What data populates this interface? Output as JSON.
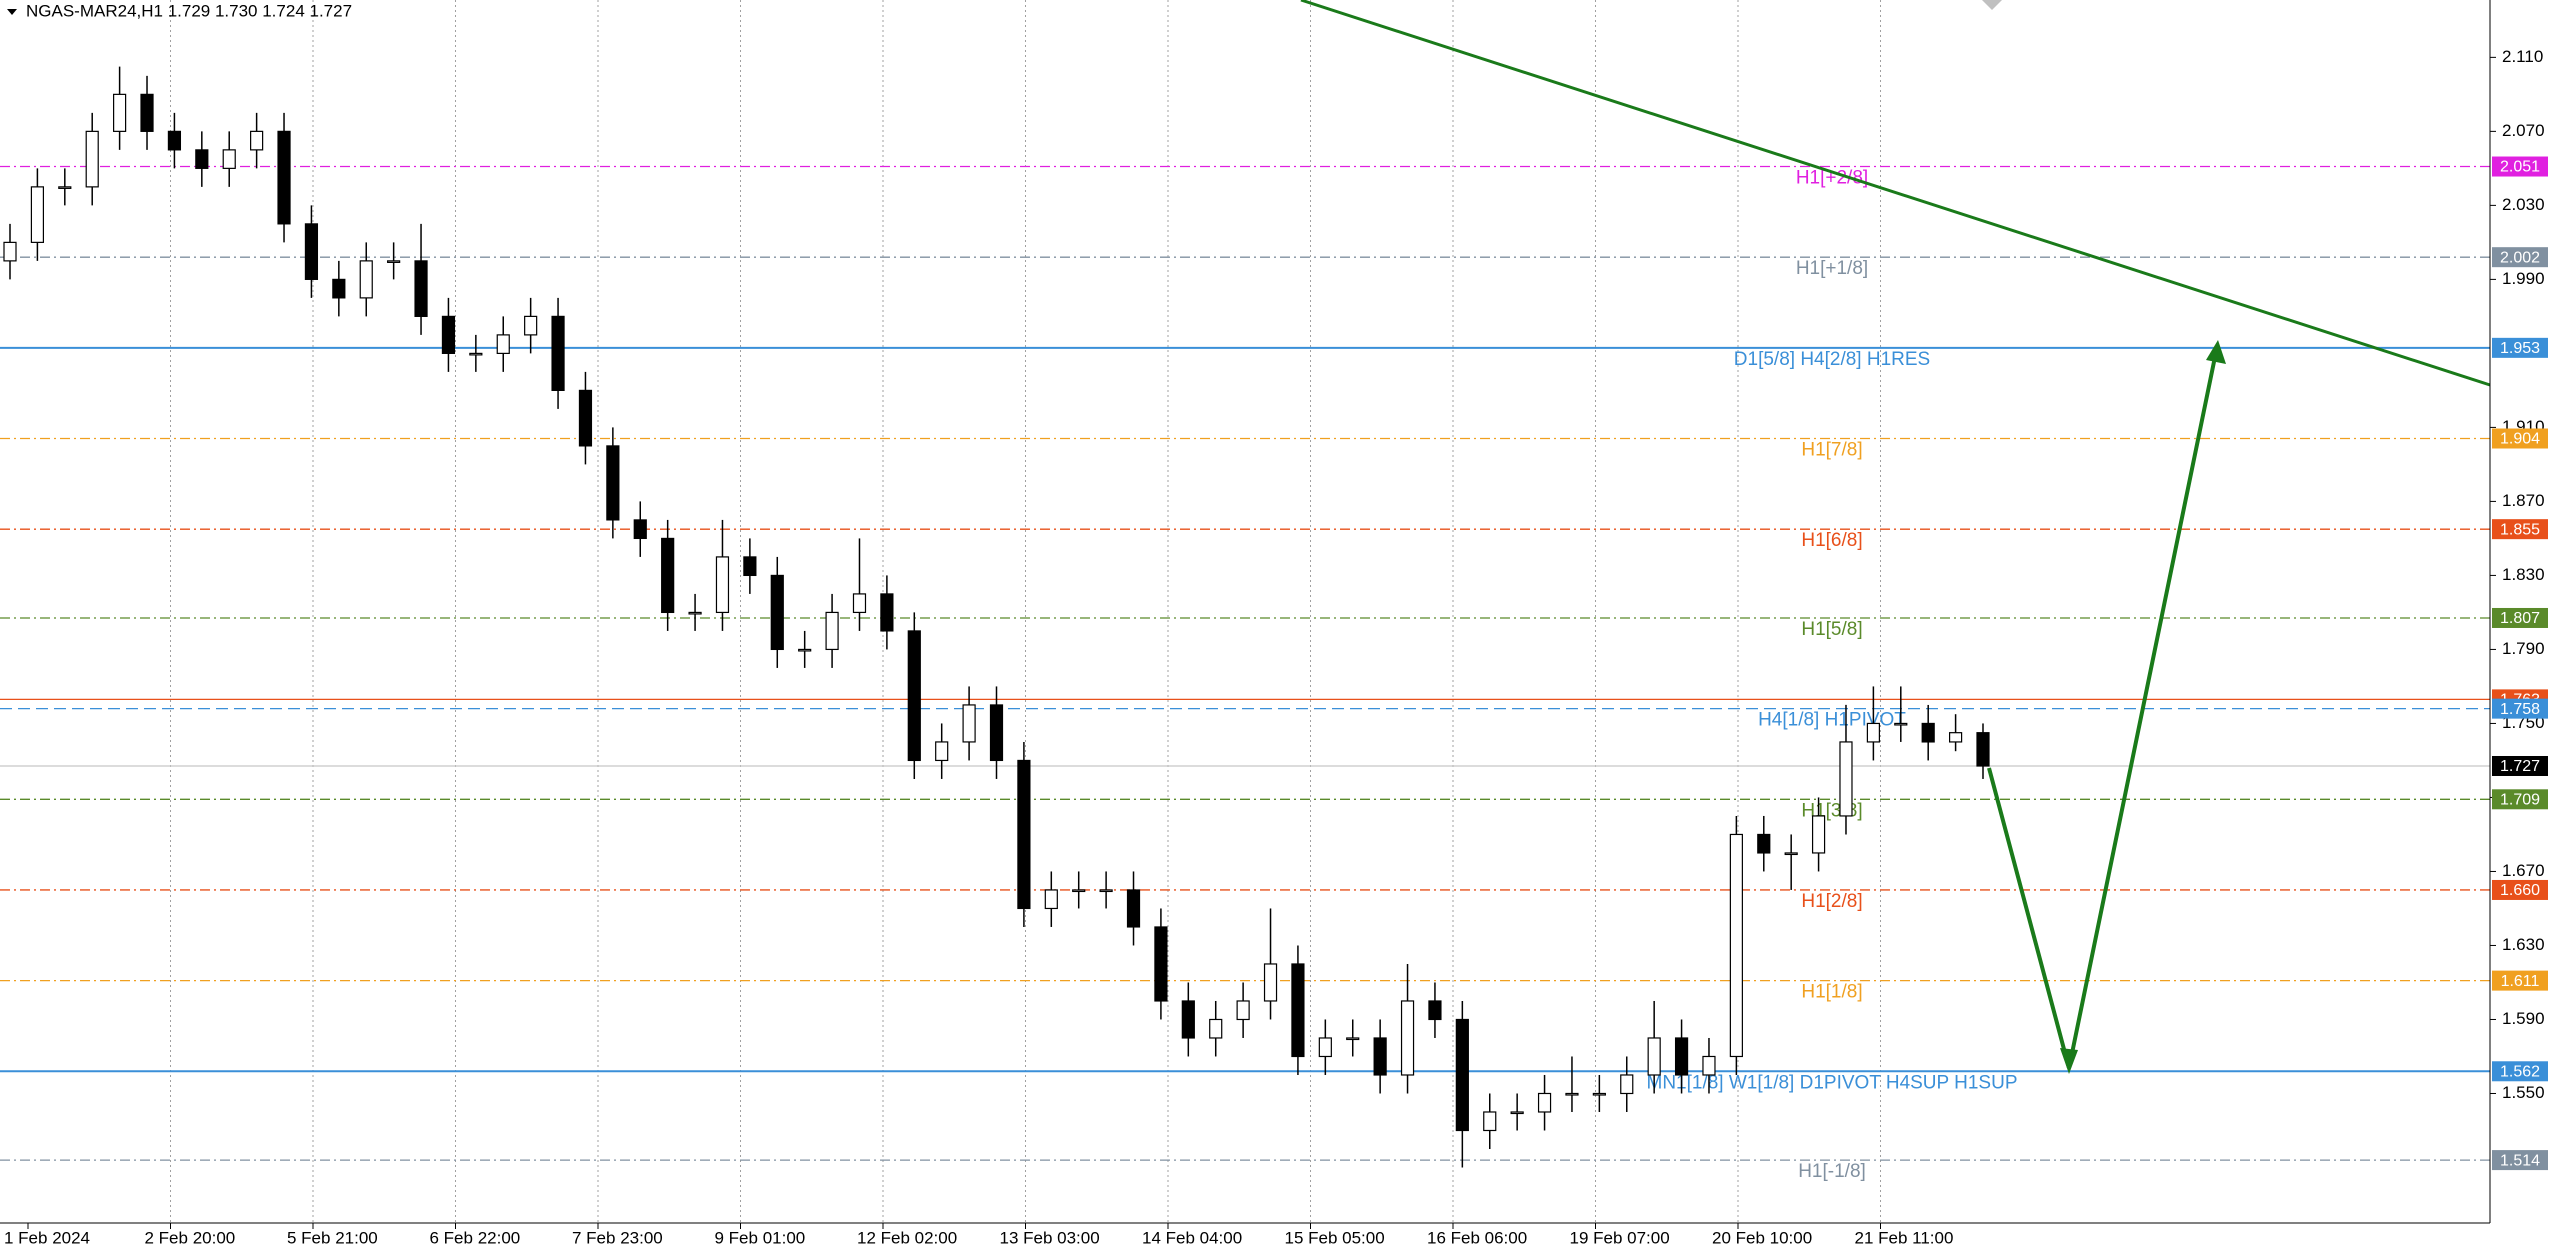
{
  "chart_data": {
    "type": "candlestick",
    "title": "NGAS-MAR24,H1  1.729 1.730 1.724 1.727",
    "categories": [
      "1 Feb 2024",
      "2 Feb 20:00",
      "5 Feb 21:00",
      "6 Feb 22:00",
      "7 Feb 23:00",
      "9 Feb 01:00",
      "12 Feb 02:00",
      "13 Feb 03:00",
      "14 Feb 04:00",
      "15 Feb 05:00",
      "16 Feb 06:00",
      "19 Feb 07:00",
      "20 Feb 10:00",
      "21 Feb 11:00"
    ],
    "candles": [
      [
        2.0,
        2.02,
        1.99,
        2.01
      ],
      [
        2.01,
        2.05,
        2.0,
        2.04
      ],
      [
        2.04,
        2.05,
        2.03,
        2.04
      ],
      [
        2.04,
        2.08,
        2.03,
        2.07
      ],
      [
        2.07,
        2.105,
        2.06,
        2.09
      ],
      [
        2.09,
        2.1,
        2.06,
        2.07
      ],
      [
        2.07,
        2.08,
        2.05,
        2.06
      ],
      [
        2.06,
        2.07,
        2.04,
        2.05
      ],
      [
        2.05,
        2.07,
        2.04,
        2.06
      ],
      [
        2.06,
        2.08,
        2.05,
        2.07
      ],
      [
        2.07,
        2.08,
        2.01,
        2.02
      ],
      [
        2.02,
        2.03,
        1.98,
        1.99
      ],
      [
        1.99,
        2.0,
        1.97,
        1.98
      ],
      [
        1.98,
        2.01,
        1.97,
        2.0
      ],
      [
        2.0,
        2.01,
        1.99,
        2.0
      ],
      [
        2.0,
        2.02,
        1.96,
        1.97
      ],
      [
        1.97,
        1.98,
        1.94,
        1.95
      ],
      [
        1.95,
        1.96,
        1.94,
        1.95
      ],
      [
        1.95,
        1.97,
        1.94,
        1.96
      ],
      [
        1.96,
        1.98,
        1.95,
        1.97
      ],
      [
        1.97,
        1.98,
        1.92,
        1.93
      ],
      [
        1.93,
        1.94,
        1.89,
        1.9
      ],
      [
        1.9,
        1.91,
        1.85,
        1.86
      ],
      [
        1.86,
        1.87,
        1.84,
        1.85
      ],
      [
        1.85,
        1.86,
        1.8,
        1.81
      ],
      [
        1.81,
        1.82,
        1.8,
        1.81
      ],
      [
        1.81,
        1.86,
        1.8,
        1.84
      ],
      [
        1.84,
        1.85,
        1.82,
        1.83
      ],
      [
        1.83,
        1.84,
        1.78,
        1.79
      ],
      [
        1.79,
        1.8,
        1.78,
        1.79
      ],
      [
        1.79,
        1.82,
        1.78,
        1.81
      ],
      [
        1.81,
        1.85,
        1.8,
        1.82
      ],
      [
        1.82,
        1.83,
        1.79,
        1.8
      ],
      [
        1.8,
        1.81,
        1.72,
        1.73
      ],
      [
        1.73,
        1.75,
        1.72,
        1.74
      ],
      [
        1.74,
        1.77,
        1.73,
        1.76
      ],
      [
        1.76,
        1.77,
        1.72,
        1.73
      ],
      [
        1.73,
        1.74,
        1.64,
        1.65
      ],
      [
        1.65,
        1.67,
        1.64,
        1.66
      ],
      [
        1.66,
        1.67,
        1.65,
        1.66
      ],
      [
        1.66,
        1.67,
        1.65,
        1.66
      ],
      [
        1.66,
        1.67,
        1.63,
        1.64
      ],
      [
        1.64,
        1.65,
        1.59,
        1.6
      ],
      [
        1.6,
        1.61,
        1.57,
        1.58
      ],
      [
        1.58,
        1.6,
        1.57,
        1.59
      ],
      [
        1.59,
        1.61,
        1.58,
        1.6
      ],
      [
        1.6,
        1.65,
        1.59,
        1.62
      ],
      [
        1.62,
        1.63,
        1.56,
        1.57
      ],
      [
        1.57,
        1.59,
        1.56,
        1.58
      ],
      [
        1.58,
        1.59,
        1.57,
        1.58
      ],
      [
        1.58,
        1.59,
        1.55,
        1.56
      ],
      [
        1.56,
        1.62,
        1.55,
        1.6
      ],
      [
        1.6,
        1.61,
        1.58,
        1.59
      ],
      [
        1.59,
        1.6,
        1.51,
        1.53
      ],
      [
        1.53,
        1.55,
        1.52,
        1.54
      ],
      [
        1.54,
        1.55,
        1.53,
        1.54
      ],
      [
        1.54,
        1.56,
        1.53,
        1.55
      ],
      [
        1.55,
        1.57,
        1.54,
        1.55
      ],
      [
        1.55,
        1.56,
        1.54,
        1.55
      ],
      [
        1.55,
        1.57,
        1.54,
        1.56
      ],
      [
        1.56,
        1.6,
        1.55,
        1.58
      ],
      [
        1.58,
        1.59,
        1.55,
        1.56
      ],
      [
        1.56,
        1.58,
        1.55,
        1.57
      ],
      [
        1.57,
        1.7,
        1.56,
        1.69
      ],
      [
        1.69,
        1.7,
        1.67,
        1.68
      ],
      [
        1.68,
        1.69,
        1.66,
        1.68
      ],
      [
        1.68,
        1.71,
        1.67,
        1.7
      ],
      [
        1.7,
        1.76,
        1.69,
        1.74
      ],
      [
        1.74,
        1.77,
        1.73,
        1.75
      ],
      [
        1.75,
        1.77,
        1.74,
        1.75
      ],
      [
        1.75,
        1.76,
        1.73,
        1.74
      ],
      [
        1.74,
        1.755,
        1.735,
        1.745
      ],
      [
        1.745,
        1.75,
        1.72,
        1.727
      ]
    ],
    "ylim": [
      1.48,
      2.141
    ],
    "yticks": [
      {
        "value": 2.11,
        "label": "2.110"
      },
      {
        "value": 2.07,
        "label": "2.070"
      },
      {
        "value": 2.03,
        "label": "2.030"
      },
      {
        "value": 1.99,
        "label": "1.990"
      },
      {
        "value": 1.91,
        "label": "1.910"
      },
      {
        "value": 1.87,
        "label": "1.870"
      },
      {
        "value": 1.83,
        "label": "1.830"
      },
      {
        "value": 1.79,
        "label": "1.790"
      },
      {
        "value": 1.75,
        "label": "1.750"
      },
      {
        "value": 1.71,
        "label": "1.710"
      },
      {
        "value": 1.67,
        "label": "1.670"
      },
      {
        "value": 1.63,
        "label": "1.630"
      },
      {
        "value": 1.59,
        "label": "1.590"
      },
      {
        "value": 1.55,
        "label": "1.550"
      }
    ],
    "levels": [
      {
        "name": "H1[+2/8]",
        "price": 2.051,
        "color": "#e020e0",
        "style": "dashdot"
      },
      {
        "name": "H1[+1/8]",
        "price": 2.002,
        "color": "#8090a0",
        "style": "dashdot"
      },
      {
        "name": "D1[5/8] H4[2/8] H1RES",
        "price": 1.953,
        "color": "#3a8fd8",
        "style": "solid"
      },
      {
        "name": "H1[7/8]",
        "price": 1.904,
        "color": "#f0a020",
        "style": "dashdot"
      },
      {
        "name": "H1[6/8]",
        "price": 1.855,
        "color": "#e8501a",
        "style": "dashdot"
      },
      {
        "name": "H1[5/8]",
        "price": 1.807,
        "color": "#5a8a2a",
        "style": "dashdot"
      },
      {
        "price": 1.763,
        "color": "#e8501a",
        "style": "solid"
      },
      {
        "name": "H4[1/8] H1PIVOT",
        "price": 1.758,
        "color": "#3a8fd8",
        "style": "dash"
      },
      {
        "price": 1.727,
        "color": "#000000",
        "style": "solid"
      },
      {
        "name": "H1[3/8]",
        "price": 1.709,
        "color": "#5a8a2a",
        "style": "dashdot"
      },
      {
        "name": "H1[2/8]",
        "price": {
          "value": 1.66,
          "label": "1.660"
        },
        "color": "#e8501a",
        "style": "dashdot"
      },
      {
        "name": "H1[1/8]",
        "price": 1.611,
        "color": "#f0a020",
        "style": "dashdot"
      },
      {
        "name": "MN1[1/8] W1[1/8] D1PIVOT H4SUP H1SUP",
        "price": 1.562,
        "color": "#3a8fd8",
        "style": "solid"
      },
      {
        "name": "H1[-1/8]",
        "price": 1.514,
        "color": "#8090a0",
        "style": "dashdot"
      }
    ]
  }
}
